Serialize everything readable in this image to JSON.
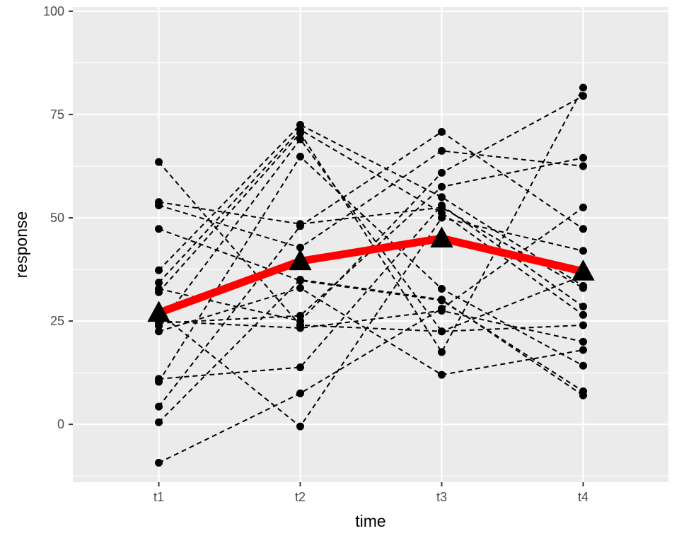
{
  "chart_data": {
    "type": "line",
    "xlabel": "time",
    "ylabel": "response",
    "categories": [
      "t1",
      "t2",
      "t3",
      "t4"
    ],
    "ylim": [
      -14,
      101
    ],
    "yticks": [
      0,
      25,
      50,
      75,
      100
    ],
    "grid": true,
    "colors": {
      "panel": "#ebebeb",
      "grid": "#ffffff",
      "subject_lines": "#000000",
      "mean_line": "#ff0000",
      "mean_marker": "#000000"
    },
    "series": [
      {
        "values": [
          63.5,
          24.0,
          22.5,
          36.0
        ]
      },
      {
        "values": [
          53.8,
          48.5,
          52.5,
          33.0
        ]
      },
      {
        "values": [
          53.0,
          42.8,
          66.2,
          62.5
        ]
      },
      {
        "values": [
          47.3,
          34.8,
          30.0,
          8.0
        ]
      },
      {
        "values": [
          37.3,
          72.5,
          55.0,
          33.5
        ]
      },
      {
        "values": [
          34.3,
          71.3,
          51.2,
          26.5
        ]
      },
      {
        "values": [
          32.8,
          25.0,
          60.9,
          79.5
        ]
      },
      {
        "values": [
          32.0,
          70.5,
          17.5,
          81.5
        ]
      },
      {
        "values": [
          24.5,
          26.3,
          57.5,
          64.5
        ]
      },
      {
        "values": [
          23.8,
          69.0,
          22.5,
          24.0
        ]
      },
      {
        "values": [
          22.5,
          33.0,
          12.0,
          18.0
        ]
      },
      {
        "values": [
          11.0,
          13.8,
          53.0,
          28.5
        ]
      },
      {
        "values": [
          10.3,
          64.8,
          32.8,
          14.2
        ]
      },
      {
        "values": [
          4.3,
          48.0,
          70.8,
          47.3
        ]
      },
      {
        "values": [
          0.5,
          35.0,
          30.2,
          7.0
        ]
      },
      {
        "values": [
          -9.3,
          7.5,
          28.0,
          52.5
        ]
      },
      {
        "values": [
          27.0,
          -0.5,
          50.0,
          42.0
        ]
      },
      {
        "values": [
          25.0,
          23.3,
          27.5,
          20.0
        ]
      }
    ],
    "mean": {
      "values": [
        27.0,
        39.5,
        45.0,
        37.0
      ]
    }
  }
}
